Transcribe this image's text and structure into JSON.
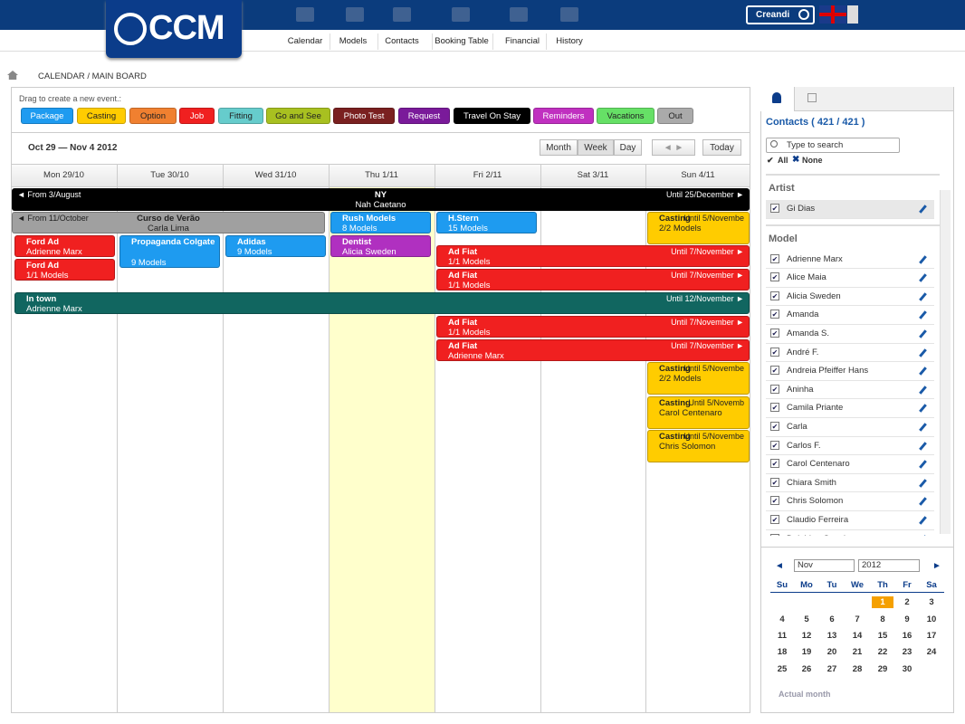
{
  "header": {
    "logo": "CCM",
    "nav": [
      "Calendar",
      "Models",
      "Contacts",
      "Booking Table",
      "Financial",
      "History"
    ],
    "user": "Creandi"
  },
  "breadcrumb": "CALENDAR / MAIN BOARD",
  "palette": {
    "label": "Drag to create a new event.:",
    "items": [
      {
        "name": "Package",
        "color": "#1e9bf0"
      },
      {
        "name": "Casting",
        "color": "#ffcc00"
      },
      {
        "name": "Option",
        "color": "#f08030"
      },
      {
        "name": "Job",
        "color": "#f02020"
      },
      {
        "name": "Fitting",
        "color": "#66cccc"
      },
      {
        "name": "Go and See",
        "color": "#a8c020"
      },
      {
        "name": "Photo Test",
        "color": "#7a2020"
      },
      {
        "name": "Request",
        "color": "#7a1a9a"
      },
      {
        "name": "Travel On Stay",
        "color": "#000000"
      },
      {
        "name": "Reminders",
        "color": "#c030c0"
      },
      {
        "name": "Vacations",
        "color": "#66e066"
      },
      {
        "name": "Out",
        "color": "#aaaaaa"
      }
    ]
  },
  "toolbar": {
    "range": "Oct 29 — Nov 4 2012",
    "views": [
      "Month",
      "Week",
      "Day"
    ],
    "today": "Today"
  },
  "days": [
    "Mon 29/10",
    "Tue 30/10",
    "Wed 31/10",
    "Thu 1/11",
    "Fri 2/11",
    "Sat 3/11",
    "Sun 4/11"
  ],
  "events": [
    {
      "from": "◄ From 3/August",
      "title": "NY",
      "until": "Until 25/December ►",
      "sub": "Nah Caetano",
      "color": "#000000"
    },
    {
      "from": "◄ From 11/October",
      "title": "Curso de Verão",
      "sub": "Carla Lima",
      "color": "#a0a0a0"
    },
    {
      "title": "Rush Models",
      "sub": "8 Models",
      "color": "#1e9bf0"
    },
    {
      "title": "H.Stern",
      "sub": "15 Models",
      "color": "#1e9bf0"
    },
    {
      "title": "Casting",
      "until": "Until 5/Novembe",
      "sub": "2/2 Models",
      "color": "#ffcc00"
    },
    {
      "title": "Ford Ad",
      "sub": "Adrienne Marx",
      "color": "#f02020"
    },
    {
      "title": "Propaganda Colgate",
      "sub": "9 Models",
      "color": "#1e9bf0"
    },
    {
      "title": "Adidas",
      "sub": "9 Models",
      "color": "#1e9bf0"
    },
    {
      "title": "Dentist",
      "sub": "Alicia Sweden",
      "color": "#b030c0"
    },
    {
      "title": "Ad Fiat",
      "until": "Until 7/November ►",
      "sub": "1/1 Models",
      "color": "#f02020"
    },
    {
      "title": "Ford Ad",
      "sub": "1/1 Models",
      "color": "#f02020"
    },
    {
      "title": "Ad Fiat",
      "until": "Until 7/November ►",
      "sub": "1/1 Models",
      "color": "#f02020"
    },
    {
      "title": "In town",
      "until": "Until 12/November ►",
      "sub": "Adrienne Marx",
      "color": "#116660"
    },
    {
      "title": "Ad Fiat",
      "until": "Until 7/November ►",
      "sub": "1/1 Models",
      "color": "#f02020"
    },
    {
      "title": "Ad Fiat",
      "until": "Until 7/November ►",
      "sub": "Adrienne Marx",
      "color": "#f02020"
    },
    {
      "title": "Casting",
      "until": "Until 5/Novembe",
      "sub": "2/2 Models",
      "color": "#ffcc00"
    },
    {
      "title": "Casting",
      "until": "Until 5/Novemb",
      "sub": "Carol Centenaro",
      "color": "#ffcc00"
    },
    {
      "title": "Casting",
      "until": "Until 5/Novembe",
      "sub": "Chris Solomon",
      "color": "#ffcc00"
    }
  ],
  "sidebar": {
    "contacts": "Contacts ( 421 / 421 )",
    "search": "Type to search",
    "all": "All",
    "none": "None",
    "groups": [
      {
        "name": "Artist",
        "items": [
          "Gi Dias"
        ]
      },
      {
        "name": "Model",
        "items": [
          "Adrienne Marx",
          "Alice Maia",
          "Alicia Sweden",
          "Amanda",
          "Amanda S.",
          "André F.",
          "Andreia Pfeiffer Hans",
          "Aninha",
          "Camila Priante",
          "Carla",
          "Carlos F.",
          "Carol Centenaro",
          "Chiara Smith",
          "Chris Solomon",
          "Claudio Ferreira",
          "Delphine Gunchura"
        ]
      }
    ]
  },
  "minical": {
    "month": "Nov",
    "year": "2012",
    "weekdays": [
      "Su",
      "Mo",
      "Tu",
      "We",
      "Th",
      "Fr",
      "Sa"
    ],
    "today": "1",
    "days": [
      "1",
      "2",
      "3",
      "4",
      "5",
      "6",
      "7",
      "8",
      "9",
      "10",
      "11",
      "12",
      "13",
      "14",
      "15",
      "16",
      "17",
      "18",
      "19",
      "20",
      "21",
      "22",
      "23",
      "24",
      "25",
      "26",
      "27",
      "28",
      "29",
      "30"
    ],
    "footer": "Actual month"
  }
}
